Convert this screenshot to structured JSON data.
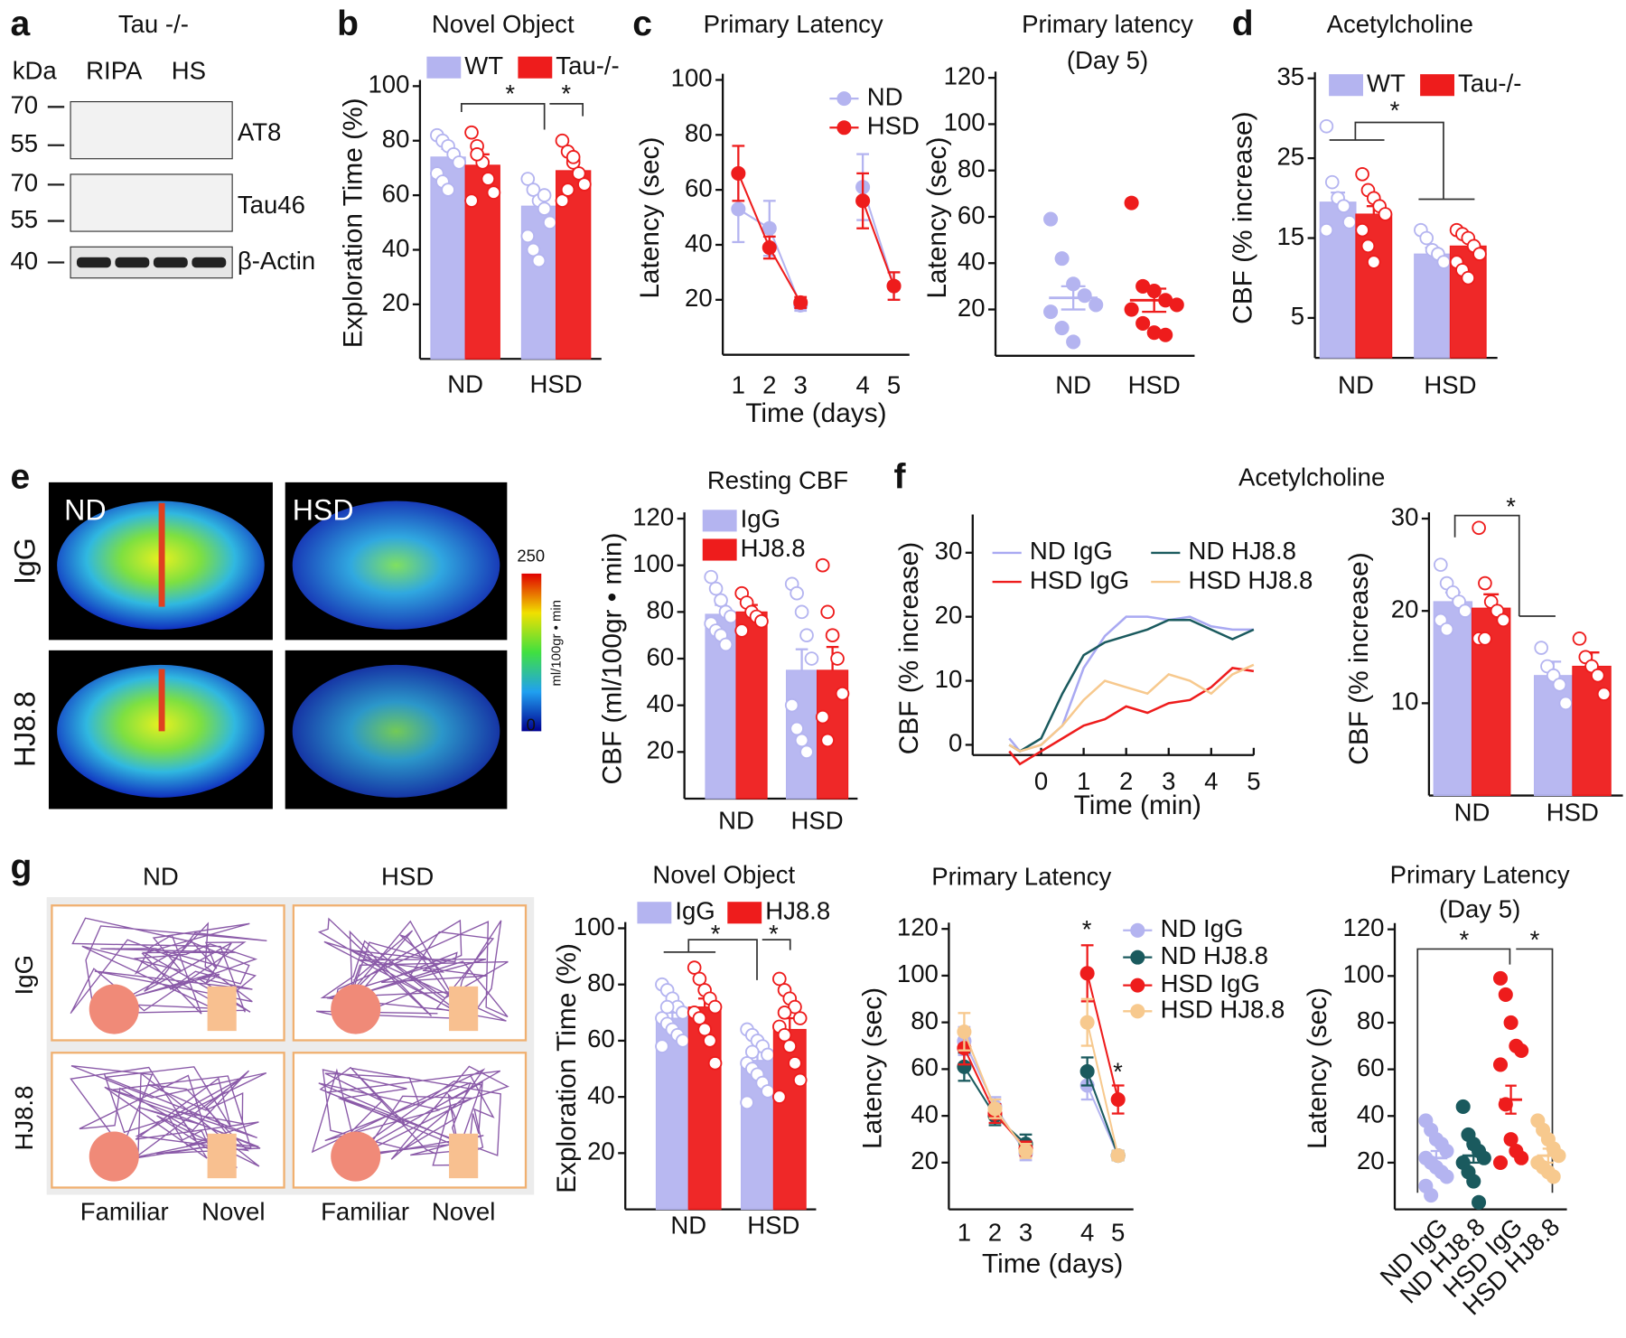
{
  "panel_labels": [
    "a",
    "b",
    "c",
    "d",
    "e",
    "f",
    "g"
  ],
  "blot": {
    "genotype": "Tau -/-",
    "unit": "kDa",
    "lanes": [
      "RIPA",
      "HS"
    ],
    "markers": [
      "70",
      "55",
      "70",
      "55",
      "40"
    ],
    "bands": [
      "AT8",
      "Tau46",
      "β-Actin"
    ]
  },
  "mri": {
    "columns": [
      "ND",
      "HSD"
    ],
    "rows": [
      "IgG",
      "HJ8.8"
    ],
    "scale_max": "250",
    "scale_min": "0",
    "scale_unit": "ml/100gr • min"
  },
  "tracks": {
    "columns": [
      "ND",
      "HSD"
    ],
    "rows": [
      "IgG",
      "HJ8.8"
    ],
    "objects": [
      "Familiar",
      "Novel",
      "Familiar",
      "Novel"
    ]
  },
  "chart_data": [
    {
      "type": "bar",
      "title": "Novel Object",
      "ylabel": "Exploration Time (%)",
      "categories": [
        "ND",
        "HSD"
      ],
      "ylim": [
        0,
        100
      ],
      "yticks": [
        20,
        40,
        60,
        80,
        100
      ],
      "annotations": [
        "*",
        "*"
      ],
      "series": [
        {
          "name": "WT",
          "color": "#b4b4f0",
          "values": [
            74,
            56
          ],
          "errors": [
            3,
            4
          ],
          "points": [
            [
              82,
              80,
              78,
              75,
              72,
              68,
              65,
              62
            ],
            [
              66,
              62,
              58,
              55,
              50,
              45,
              40,
              36,
              60
            ]
          ]
        },
        {
          "name": "Tau-/-",
          "color": "#ee1c1c",
          "values": [
            71,
            69
          ],
          "errors": [
            4,
            4
          ],
          "points": [
            [
              83,
              78,
              72,
              66,
              61,
              58,
              75
            ],
            [
              80,
              76,
              72,
              68,
              64,
              58,
              62,
              74
            ]
          ]
        }
      ]
    },
    {
      "type": "line",
      "title": "Primary Latency",
      "xlabel": "Time (days)",
      "ylabel": "Latency (sec)",
      "categories": [
        "1",
        "2",
        "3",
        null,
        "4",
        "5"
      ],
      "ylim": [
        0,
        100
      ],
      "yticks": [
        20,
        40,
        60,
        80,
        100
      ],
      "series": [
        {
          "name": "ND",
          "color": "#b4b4f0",
          "values": [
            53,
            46,
            18,
            null,
            61,
            25
          ],
          "errors": [
            12,
            10,
            2,
            null,
            12,
            5
          ]
        },
        {
          "name": "HSD",
          "color": "#ee1c1c",
          "values": [
            66,
            39,
            19,
            null,
            56,
            25
          ],
          "errors": [
            10,
            4,
            2,
            null,
            10,
            5
          ]
        }
      ]
    },
    {
      "type": "dot",
      "title": [
        "Primary latency",
        "(Day 5)"
      ],
      "ylabel": "Latency (sec)",
      "categories": [
        "ND",
        "HSD"
      ],
      "ylim": [
        0,
        120
      ],
      "yticks": [
        20,
        40,
        60,
        80,
        100,
        120
      ],
      "colors": [
        "#b4b4f0",
        "#ee1c1c"
      ],
      "means": [
        25,
        24
      ],
      "errors": [
        5,
        5
      ],
      "points": [
        [
          59,
          42,
          31,
          26,
          22,
          19,
          12,
          6
        ],
        [
          66,
          30,
          28,
          24,
          22,
          20,
          14,
          10,
          9
        ]
      ]
    },
    {
      "type": "bar",
      "title": "Acetylcholine",
      "ylabel": "CBF (% increase)",
      "categories": [
        "ND",
        "HSD"
      ],
      "ylim": [
        0,
        35
      ],
      "yticks": [
        5,
        15,
        25,
        35
      ],
      "annotations": [
        "*"
      ],
      "series": [
        {
          "name": "WT",
          "color": "#b4b4f0",
          "values": [
            19.5,
            13
          ],
          "errors": [
            1.2,
            0.8
          ],
          "points": [
            [
              29,
              22,
              20,
              19,
              17,
              16
            ],
            [
              16,
              15,
              13.5,
              13,
              12
            ]
          ]
        },
        {
          "name": "Tau-/-",
          "color": "#ee1c1c",
          "values": [
            18,
            14
          ],
          "errors": [
            1,
            0.8
          ],
          "points": [
            [
              23,
              21,
              20,
              19,
              18,
              16,
              14,
              12
            ],
            [
              16,
              15.5,
              15,
              14,
              13,
              12,
              11,
              10
            ]
          ]
        }
      ]
    },
    {
      "type": "bar",
      "title": "Resting CBF",
      "ylabel": "CBF (ml/100gr • min)",
      "categories": [
        "ND",
        "HSD"
      ],
      "ylim": [
        0,
        120
      ],
      "yticks": [
        20,
        40,
        60,
        80,
        100,
        120
      ],
      "series": [
        {
          "name": "IgG",
          "color": "#b4b4f0",
          "values": [
            79,
            55
          ],
          "errors": [
            4,
            9
          ],
          "points": [
            [
              95,
              90,
              85,
              80,
              78,
              75,
              72,
              70,
              66
            ],
            [
              92,
              88,
              80,
              70,
              60,
              40,
              30,
              25,
              20
            ]
          ]
        },
        {
          "name": "HJ8.8",
          "color": "#ee1c1c",
          "values": [
            80,
            55
          ],
          "errors": [
            3,
            10
          ],
          "points": [
            [
              88,
              84,
              80,
              78,
              76,
              72
            ],
            [
              100,
              80,
              70,
              60,
              45,
              35,
              25
            ]
          ]
        }
      ]
    },
    {
      "type": "line",
      "title": "Acetylcholine",
      "xlabel": "Time (min)",
      "ylabel": "CBF (% increase)",
      "x": [
        -0.75,
        -0.5,
        0,
        0.5,
        1,
        1.5,
        2,
        2.5,
        3,
        3.5,
        4,
        4.5,
        5
      ],
      "xlim": [
        -1.6,
        5
      ],
      "xticks": [
        0,
        1,
        2,
        3,
        4,
        5
      ],
      "ylim": [
        -5,
        35
      ],
      "yticks": [
        0,
        10,
        20,
        30
      ],
      "series": [
        {
          "name": "ND IgG",
          "color": "#a9a9f2",
          "values": [
            1,
            -1,
            0,
            3,
            12,
            17,
            20,
            20,
            19.5,
            20,
            18.5,
            18,
            18
          ]
        },
        {
          "name": "ND HJ8.8",
          "color": "#1a5a5e",
          "values": [
            0,
            -1,
            1,
            8,
            14,
            16,
            17,
            18,
            19.5,
            19.5,
            18,
            16.5,
            18
          ]
        },
        {
          "name": "HSD IgG",
          "color": "#ee1c1c",
          "values": [
            -1,
            -3,
            -1,
            1,
            3,
            4,
            6,
            5,
            6.5,
            7,
            9,
            12,
            11.5
          ]
        },
        {
          "name": "HSD HJ8.8",
          "color": "#f7c98e",
          "values": [
            0,
            -1,
            0,
            3,
            7,
            10,
            9,
            8,
            11,
            10,
            8,
            11,
            12.5
          ]
        }
      ]
    },
    {
      "type": "bar",
      "ylabel": "CBF (% increase)",
      "categories": [
        "ND",
        "HSD"
      ],
      "ylim": [
        0,
        30
      ],
      "yticks": [
        10,
        20,
        30
      ],
      "annotations": [
        "*"
      ],
      "series": [
        {
          "color": "#b4b4f0",
          "values": [
            21,
            13
          ],
          "errors": [
            1,
            1.5
          ],
          "points": [
            [
              25,
              23,
              22,
              21,
              20,
              19,
              18
            ],
            [
              16,
              14,
              13,
              12,
              10
            ]
          ]
        },
        {
          "color": "#ee1c1c",
          "values": [
            20.3,
            14
          ],
          "errors": [
            1.5,
            1.5
          ],
          "points": [
            [
              29,
              23,
              21,
              20,
              19,
              17,
              17
            ],
            [
              17,
              15,
              14,
              13,
              11
            ]
          ]
        }
      ]
    },
    {
      "type": "bar",
      "title": "Novel Object",
      "ylabel": "Exploration Time (%)",
      "categories": [
        "ND",
        "HSD"
      ],
      "ylim": [
        0,
        100
      ],
      "yticks": [
        20,
        40,
        60,
        80,
        100
      ],
      "annotations": [
        "*",
        "*"
      ],
      "series": [
        {
          "name": "IgG",
          "color": "#b4b4f0",
          "values": [
            68,
            53
          ],
          "errors": [
            2,
            3
          ],
          "points": [
            [
              80,
              78,
              75,
              72,
              70,
              68,
              66,
              64,
              62,
              60,
              58,
              72
            ],
            [
              64,
              62,
              60,
              58,
              55,
              52,
              50,
              48,
              45,
              42,
              38,
              56
            ]
          ]
        },
        {
          "name": "HJ8.8",
          "color": "#ee1c1c",
          "values": [
            72,
            64
          ],
          "errors": [
            3,
            4
          ],
          "points": [
            [
              86,
              82,
              78,
              75,
              72,
              70,
              68,
              64,
              60,
              52
            ],
            [
              82,
              78,
              75,
              72,
              68,
              65,
              62,
              58,
              52,
              46,
              40,
              70
            ]
          ]
        }
      ]
    },
    {
      "type": "line",
      "title": "Primary Latency",
      "xlabel": "Time (days)",
      "ylabel": "Latency (sec)",
      "categories": [
        "1",
        "2",
        "3",
        null,
        "4",
        "5"
      ],
      "ylim": [
        0,
        120
      ],
      "yticks": [
        20,
        40,
        60,
        80,
        100,
        120
      ],
      "annotations": [
        "*",
        "*"
      ],
      "series": [
        {
          "name": "ND IgG",
          "color": "#b4b4f0",
          "values": [
            72,
            44,
            24,
            null,
            53,
            23
          ],
          "errors": [
            6,
            4,
            3,
            null,
            6,
            2
          ]
        },
        {
          "name": "ND HJ8.8",
          "color": "#1a5a5e",
          "values": [
            61,
            40,
            28,
            null,
            59,
            23
          ],
          "errors": [
            6,
            4,
            4,
            null,
            6,
            2
          ]
        },
        {
          "name": "HSD IgG",
          "color": "#ee1c1c",
          "values": [
            69,
            41,
            26,
            null,
            101,
            47
          ],
          "errors": [
            7,
            4,
            3,
            null,
            12,
            6
          ]
        },
        {
          "name": "HSD HJ8.8",
          "color": "#f7c98e",
          "values": [
            76,
            43,
            25,
            null,
            80,
            23
          ],
          "errors": [
            8,
            4,
            3,
            null,
            10,
            2
          ]
        }
      ]
    },
    {
      "type": "dot",
      "title": [
        "Primary Latency",
        "(Day 5)"
      ],
      "ylabel": "Latency (sec)",
      "categories": [
        "ND IgG",
        "ND HJ8.8",
        "HSD IgG",
        "HSD HJ8.8"
      ],
      "ylim": [
        0,
        120
      ],
      "yticks": [
        20,
        40,
        60,
        80,
        100,
        120
      ],
      "colors": [
        "#b4b4f0",
        "#1a5a5e",
        "#ee1c1c",
        "#f7c98e"
      ],
      "means": [
        22,
        23,
        47,
        23
      ],
      "errors": [
        3,
        3,
        6,
        3
      ],
      "annotations": [
        "*",
        "*"
      ],
      "points": [
        [
          38,
          34,
          30,
          28,
          25,
          22,
          20,
          18,
          16,
          14,
          10,
          6
        ],
        [
          44,
          32,
          28,
          25,
          22,
          20,
          16,
          12,
          3
        ],
        [
          99,
          92,
          80,
          70,
          68,
          62,
          45,
          30,
          25,
          22,
          20
        ],
        [
          38,
          34,
          30,
          26,
          23,
          20,
          18,
          16,
          14
        ]
      ]
    }
  ]
}
